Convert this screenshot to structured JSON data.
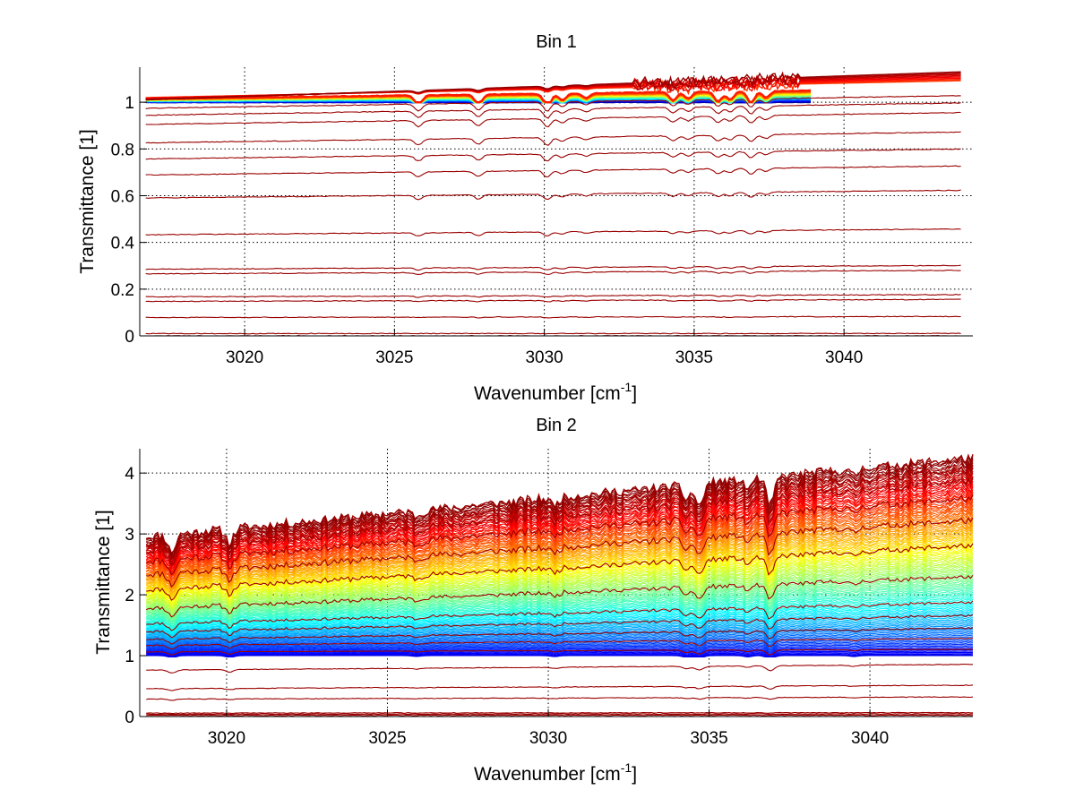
{
  "chart_data": [
    {
      "type": "line",
      "title": "Bin 1",
      "xlabel": "Wavenumber [cm",
      "xlabel_sup": "-1",
      "xlabel_end": "]",
      "ylabel": "Transmittance [1]",
      "xlim": [
        3016.5,
        3044.3
      ],
      "ylim": [
        0,
        1.15
      ],
      "xticks": [
        3020,
        3025,
        3030,
        3035,
        3040
      ],
      "yticks": [
        0,
        0.2,
        0.4,
        0.6,
        0.8,
        1
      ],
      "ytick_labels": [
        "0",
        "0.2",
        "0.4",
        "0.6",
        "0.8",
        "1"
      ],
      "grid": true,
      "colormap": "jet",
      "x_start": 3016.7,
      "x_end": 3043.9,
      "baselines_below_1": [
        0.0,
        0.01,
        0.08,
        0.15,
        0.17,
        0.27,
        0.29,
        0.44,
        0.6,
        0.7,
        0.77,
        0.84,
        0.92,
        0.96,
        0.99
      ],
      "slope_below_1": 0.055,
      "colored_band": {
        "x_end": 3038.9,
        "y_min": 1.0,
        "y_max": 1.05,
        "count": 40
      },
      "upper_curves": {
        "y_start": 1.02,
        "y_end": 1.14,
        "count": 8
      },
      "absorption_lines": [
        {
          "x": 3025.8,
          "depth": 0.03
        },
        {
          "x": 3027.8,
          "depth": 0.03
        },
        {
          "x": 3030.1,
          "depth": 0.04
        },
        {
          "x": 3030.6,
          "depth": 0.02
        },
        {
          "x": 3031.4,
          "depth": 0.015
        },
        {
          "x": 3034.3,
          "depth": 0.025
        },
        {
          "x": 3034.8,
          "depth": 0.02
        },
        {
          "x": 3035.8,
          "depth": 0.03
        },
        {
          "x": 3036.2,
          "depth": 0.025
        },
        {
          "x": 3036.9,
          "depth": 0.035
        },
        {
          "x": 3037.4,
          "depth": 0.02
        }
      ]
    },
    {
      "type": "line",
      "title": "Bin 2",
      "xlabel": "Wavenumber [cm",
      "xlabel_sup": "-1",
      "xlabel_end": "]",
      "ylabel": "Transmittance [1]",
      "xlim": [
        3017.3,
        3043.2
      ],
      "ylim": [
        0,
        4.4
      ],
      "xticks": [
        3020,
        3025,
        3030,
        3035,
        3040
      ],
      "yticks": [
        0,
        1,
        2,
        3,
        4
      ],
      "ytick_labels": [
        "0",
        "1",
        "2",
        "3",
        "4"
      ],
      "grid": true,
      "colormap": "jet",
      "x_start": 3017.5,
      "x_end": 3043.2,
      "baselines_below_1": [
        0.02,
        0.04,
        0.06,
        0.3,
        0.48,
        0.8
      ],
      "slope_below_1": 0.12,
      "colored_fan": {
        "count": 110,
        "top_left": 2.95,
        "top_right": 4.25,
        "bottom_left": 1.0,
        "bottom_right": 1.0
      },
      "red_overlay_fractions": [
        0.05,
        0.12,
        0.18,
        0.25,
        0.32,
        0.45,
        0.6,
        0.72,
        0.82,
        0.9,
        0.95,
        1.0
      ],
      "absorption_lines": [
        {
          "x": 3018.3,
          "depth": 0.15
        },
        {
          "x": 3020.1,
          "depth": 0.12
        },
        {
          "x": 3025.9,
          "depth": 0.05
        },
        {
          "x": 3030.2,
          "depth": 0.06
        },
        {
          "x": 3034.3,
          "depth": 0.12
        },
        {
          "x": 3034.7,
          "depth": 0.2
        },
        {
          "x": 3036.2,
          "depth": 0.08
        },
        {
          "x": 3036.9,
          "depth": 0.25
        },
        {
          "x": 3039.5,
          "depth": 0.06
        }
      ]
    }
  ]
}
